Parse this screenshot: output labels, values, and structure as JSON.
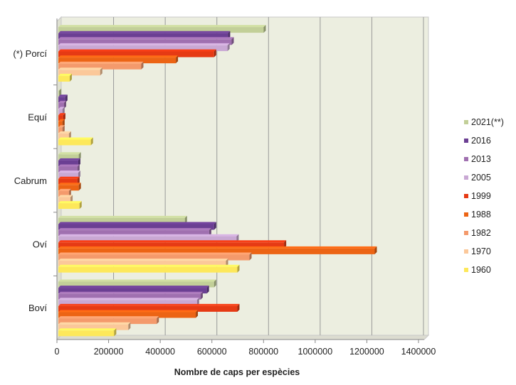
{
  "chart_data": {
    "type": "bar",
    "orientation": "horizontal",
    "style": "3d-clustered",
    "title": "",
    "xlabel": "Nombre de caps per espècies",
    "ylabel": "",
    "xlim": [
      0,
      1400000
    ],
    "xticks": [
      "0",
      "200000",
      "400000",
      "600000",
      "800000",
      "1000000",
      "1200000",
      "1400000"
    ],
    "grid": true,
    "legend_position": "right",
    "categories": [
      "(*) Porcí",
      "Equí",
      "Cabrum",
      "Oví",
      "Boví"
    ],
    "series": [
      {
        "name": "2021(**)",
        "color": "#c2cf98",
        "values": [
          795000,
          3000,
          79000,
          490000,
          603000
        ]
      },
      {
        "name": "2016",
        "color": "#6b3f93",
        "values": [
          657000,
          27000,
          77000,
          603000,
          575000
        ]
      },
      {
        "name": "2013",
        "color": "#a070b0",
        "values": [
          671000,
          22000,
          74000,
          584000,
          551000
        ]
      },
      {
        "name": "2005",
        "color": "#c9a8d4",
        "values": [
          655000,
          16000,
          77000,
          690000,
          537000
        ]
      },
      {
        "name": "1999",
        "color": "#e63a14",
        "values": [
          603000,
          19000,
          74000,
          874000,
          693000
        ]
      },
      {
        "name": "1988",
        "color": "#ec6414",
        "values": [
          455000,
          16000,
          79000,
          1225000,
          532000
        ]
      },
      {
        "name": "1982",
        "color": "#f49a6c",
        "values": [
          321000,
          16000,
          41000,
          740000,
          381000
        ]
      },
      {
        "name": "1970",
        "color": "#fbc89a",
        "values": [
          162000,
          41000,
          47000,
          649000,
          271000
        ]
      },
      {
        "name": "1960",
        "color": "#fde85a",
        "values": [
          44000,
          126000,
          82000,
          693000,
          216000
        ]
      }
    ]
  }
}
